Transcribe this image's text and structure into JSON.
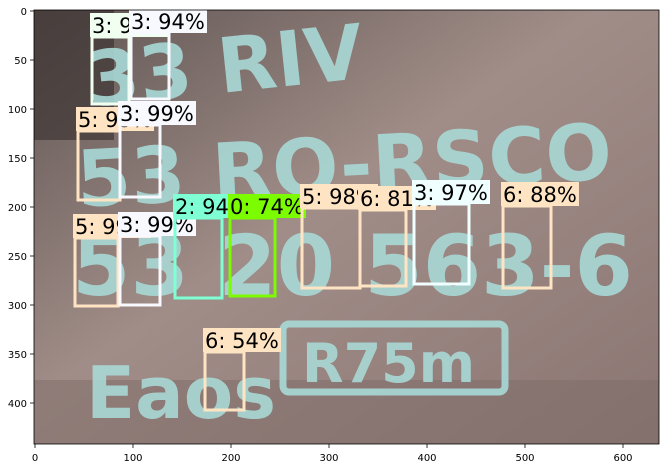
{
  "axes": {
    "x_ticks": [
      "0",
      "100",
      "200",
      "300",
      "400",
      "500",
      "600"
    ],
    "y_ticks": [
      "0",
      "50",
      "100",
      "150",
      "200",
      "250",
      "300",
      "350",
      "400"
    ]
  },
  "scene": {
    "painted_text": {
      "line1": "33 RIV",
      "line2": "53 RO-RSCO",
      "line3": "53 20 563-6",
      "line4": "Eaos",
      "plate": "R75m"
    }
  },
  "detections": [
    {
      "label": "3: 98%",
      "color": "#f0fff0"
    },
    {
      "label": "3: 94%",
      "color": "#f8f8ff"
    },
    {
      "label": "5: 93%",
      "color": "#ffe4c4"
    },
    {
      "label": "3: 99%",
      "color": "#f8f8ff"
    },
    {
      "label": "5: 99%",
      "color": "#ffe4c4"
    },
    {
      "label": "3: 99%",
      "color": "#f8f8ff"
    },
    {
      "label": "2: 94%",
      "color": "#7fffd4"
    },
    {
      "label": "0: 74%",
      "color": "#7cfc00"
    },
    {
      "label": "5: 98%",
      "color": "#ffe4c4"
    },
    {
      "label": "6: 81%",
      "color": "#ffe4c4"
    },
    {
      "label": "3: 97%",
      "color": "#f0ffff"
    },
    {
      "label": "6: 88%",
      "color": "#ffe4c4"
    },
    {
      "label": "6: 54%",
      "color": "#ffe4c4"
    }
  ]
}
